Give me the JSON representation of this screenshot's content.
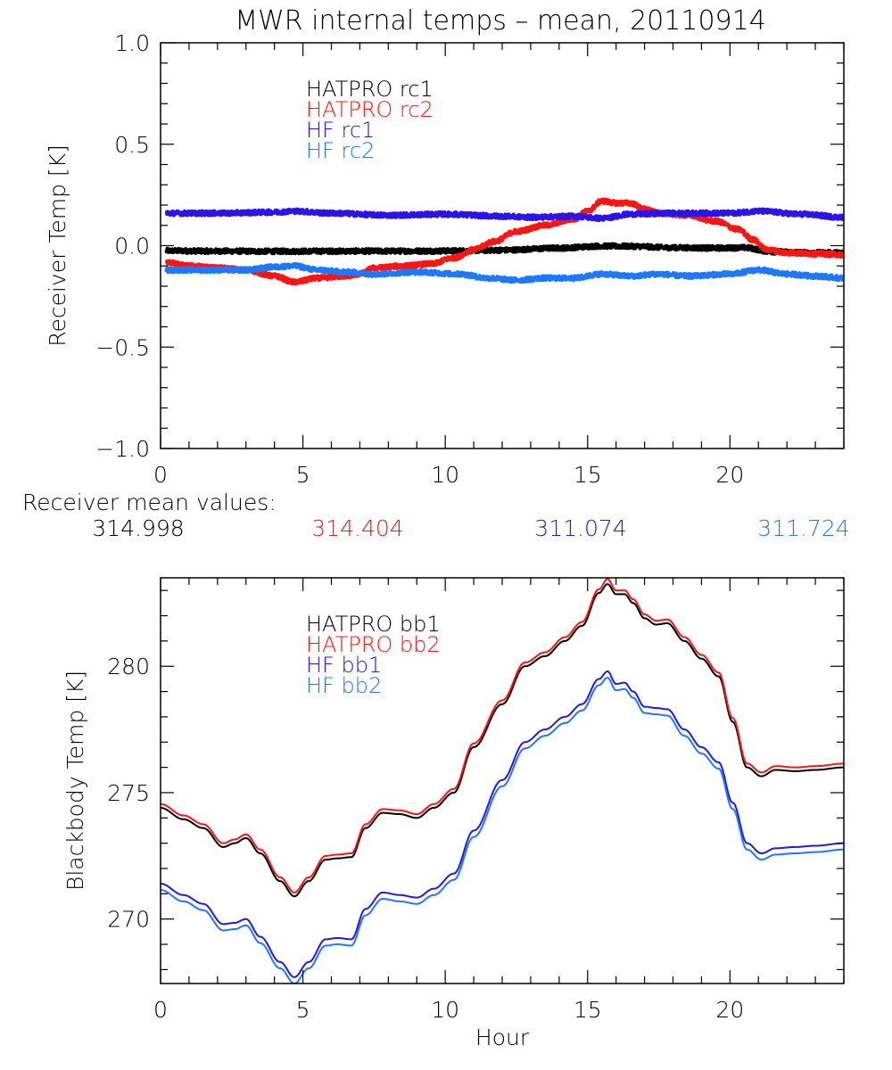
{
  "title": "MWR internal temps – mean, 20110914",
  "colors": {
    "black": "#000000",
    "red": "#ff1414",
    "blue": "#2d14e6",
    "lightblue": "#1e78ff"
  },
  "mean_values": {
    "label": "Receiver mean values:",
    "values": [
      {
        "text": "314.998",
        "color": "#000000"
      },
      {
        "text": "314.404",
        "color": "#ff1414"
      },
      {
        "text": "311.074",
        "color": "#2d14e6"
      },
      {
        "text": "311.724",
        "color": "#1e78ff"
      }
    ]
  },
  "chart_data": [
    {
      "type": "line",
      "title": "MWR internal temps – mean, 20110914",
      "xlabel": "",
      "ylabel": "Receiver Temp [K]",
      "xlim": [
        0,
        24
      ],
      "ylim": [
        -1.0,
        1.0
      ],
      "xticks": [
        0,
        5,
        10,
        15,
        20
      ],
      "xtick_labels": [
        "0",
        "5",
        "10",
        "15",
        "20"
      ],
      "yticks": [
        -1.0,
        -0.5,
        0.0,
        0.5,
        1.0
      ],
      "ytick_labels": [
        "−1.0",
        "−0.5",
        "0.0",
        "0.5",
        "1.0"
      ],
      "x_minor_step": 1,
      "y_minor_step": 0.1,
      "grid": false,
      "legend_position": "top-left-inside",
      "noisy": true,
      "series": [
        {
          "name": "HATPRO rc1",
          "color": "#000000",
          "x": [
            0.2,
            2,
            4,
            6,
            8,
            10,
            12,
            14,
            15.5,
            16.5,
            18,
            19.5,
            20.5,
            21.5,
            23,
            24
          ],
          "y": [
            -0.025,
            -0.027,
            -0.028,
            -0.027,
            -0.027,
            -0.026,
            -0.022,
            -0.012,
            -0.002,
            -0.003,
            -0.01,
            -0.012,
            -0.01,
            -0.03,
            -0.035,
            -0.035
          ]
        },
        {
          "name": "HATPRO rc2",
          "color": "#ff1414",
          "x": [
            0.2,
            1,
            2,
            3,
            4,
            4.7,
            5.5,
            6.5,
            7,
            7.5,
            8.5,
            9.5,
            10.3,
            11,
            11.7,
            12.5,
            13.5,
            14.5,
            15,
            15.5,
            16,
            16.5,
            17,
            17.5,
            18.5,
            19.5,
            20.3,
            20.8,
            21.3,
            22,
            23,
            24
          ],
          "y": [
            -0.08,
            -0.1,
            -0.11,
            -0.12,
            -0.15,
            -0.18,
            -0.16,
            -0.15,
            -0.14,
            -0.11,
            -0.1,
            -0.09,
            -0.06,
            -0.02,
            0.02,
            0.07,
            0.1,
            0.13,
            0.17,
            0.22,
            0.21,
            0.21,
            0.18,
            0.16,
            0.15,
            0.12,
            0.08,
            0.03,
            -0.02,
            -0.035,
            -0.04,
            -0.045
          ]
        },
        {
          "name": "HF rc1",
          "color": "#2d14e6",
          "x": [
            0.2,
            2,
            4,
            4.7,
            6,
            8,
            10,
            12,
            13,
            14.5,
            15.5,
            16.5,
            18,
            20,
            21,
            22.5,
            24
          ],
          "y": [
            0.16,
            0.16,
            0.165,
            0.17,
            0.16,
            0.15,
            0.155,
            0.145,
            0.14,
            0.145,
            0.135,
            0.155,
            0.16,
            0.16,
            0.17,
            0.155,
            0.14
          ]
        },
        {
          "name": "HF rc2",
          "color": "#1e78ff",
          "x": [
            0.2,
            1.5,
            3,
            4,
            4.7,
            5.5,
            6.5,
            7.5,
            9,
            10.5,
            11.5,
            12.5,
            13.5,
            14.5,
            15.5,
            16.5,
            17.5,
            18.5,
            20,
            21,
            22,
            23,
            24
          ],
          "y": [
            -0.12,
            -0.12,
            -0.12,
            -0.105,
            -0.1,
            -0.12,
            -0.13,
            -0.14,
            -0.13,
            -0.14,
            -0.16,
            -0.17,
            -0.16,
            -0.16,
            -0.14,
            -0.15,
            -0.14,
            -0.15,
            -0.14,
            -0.12,
            -0.14,
            -0.15,
            -0.16
          ]
        }
      ]
    },
    {
      "type": "line",
      "title": "",
      "xlabel": "Hour",
      "ylabel": "Blackbody Temp [K]",
      "xlim": [
        0,
        24
      ],
      "ylim": [
        267.45,
        283.5
      ],
      "xticks": [
        0,
        5,
        10,
        15,
        20
      ],
      "xtick_labels": [
        "0",
        "5",
        "10",
        "15",
        "20"
      ],
      "yticks": [
        270,
        275,
        280
      ],
      "ytick_labels": [
        "270",
        "275",
        "280"
      ],
      "x_minor_step": 1,
      "y_minor_step": 1,
      "grid": false,
      "legend_position": "top-left-inside",
      "noisy": false,
      "series": [
        {
          "name": "HATPRO bb1",
          "color": "#000000",
          "x": [
            0,
            0.8,
            1.5,
            2.2,
            2.6,
            3.0,
            3.5,
            4.2,
            4.7,
            5.2,
            5.8,
            6.2,
            6.7,
            7.2,
            7.8,
            8.4,
            9.0,
            9.6,
            10.3,
            11,
            12,
            12.8,
            13.5,
            14.2,
            14.8,
            15.4,
            15.7,
            16.0,
            16.3,
            16.6,
            17.0,
            17.4,
            17.8,
            18.4,
            19.0,
            19.6,
            20.1,
            20.6,
            21.1,
            21.6,
            22.3,
            23,
            24
          ],
          "y": [
            274.4,
            273.95,
            273.6,
            272.85,
            273.0,
            273.2,
            272.6,
            271.5,
            270.9,
            271.5,
            272.35,
            272.4,
            272.45,
            273.6,
            274.2,
            274.15,
            274.0,
            274.4,
            275.0,
            276.8,
            278.5,
            280.0,
            280.4,
            281.0,
            281.6,
            282.9,
            283.25,
            282.85,
            282.85,
            282.5,
            281.9,
            281.65,
            281.7,
            281.0,
            280.3,
            279.6,
            277.8,
            276.0,
            275.65,
            275.9,
            275.85,
            275.9,
            276.0
          ]
        },
        {
          "name": "HATPRO bb2",
          "color": "#ff1414",
          "x": [
            0,
            0.8,
            1.5,
            2.2,
            2.6,
            3.0,
            3.5,
            4.2,
            4.7,
            5.2,
            5.8,
            6.2,
            6.7,
            7.2,
            7.8,
            8.4,
            9.0,
            9.6,
            10.3,
            11,
            12,
            12.8,
            13.5,
            14.2,
            14.8,
            15.4,
            15.7,
            16.0,
            16.3,
            16.6,
            17.0,
            17.4,
            17.8,
            18.4,
            19.0,
            19.6,
            20.1,
            20.6,
            21.1,
            21.6,
            22.3,
            23,
            24
          ],
          "y": [
            274.55,
            274.1,
            273.75,
            273.0,
            273.15,
            273.35,
            272.75,
            271.65,
            271.05,
            271.65,
            272.5,
            272.55,
            272.6,
            273.75,
            274.35,
            274.3,
            274.15,
            274.55,
            275.15,
            276.95,
            278.65,
            280.15,
            280.55,
            281.15,
            281.75,
            283.05,
            283.45,
            283.0,
            283.0,
            282.65,
            282.05,
            281.8,
            281.85,
            281.15,
            280.45,
            279.75,
            277.95,
            276.15,
            275.8,
            276.05,
            276.0,
            276.05,
            276.15
          ]
        },
        {
          "name": "HF bb1",
          "color": "#2d14e6",
          "x": [
            0,
            0.8,
            1.5,
            2.2,
            2.6,
            3.0,
            3.5,
            4.2,
            4.7,
            5.2,
            5.8,
            6.2,
            6.7,
            7.2,
            7.8,
            8.4,
            9.0,
            9.6,
            10.3,
            11,
            12,
            12.8,
            13.5,
            14.2,
            14.8,
            15.4,
            15.7,
            16.0,
            16.3,
            16.6,
            17.0,
            17.4,
            17.8,
            18.4,
            19.0,
            19.6,
            20.1,
            20.6,
            21.1,
            21.6,
            22.3,
            23,
            24
          ],
          "y": [
            271.4,
            270.95,
            270.6,
            269.8,
            269.85,
            270.0,
            269.3,
            268.3,
            267.7,
            268.3,
            269.2,
            269.25,
            269.2,
            270.4,
            271.05,
            270.95,
            270.85,
            271.2,
            271.8,
            273.5,
            275.5,
            277.0,
            277.5,
            278.0,
            278.5,
            279.5,
            279.8,
            279.3,
            279.35,
            279.0,
            278.4,
            278.35,
            278.3,
            277.5,
            276.8,
            276.2,
            274.6,
            273.0,
            272.6,
            272.8,
            272.85,
            272.9,
            273.0
          ]
        },
        {
          "name": "HF bb2",
          "color": "#1e78ff",
          "x": [
            0,
            0.8,
            1.5,
            2.2,
            2.6,
            3.0,
            3.5,
            4.2,
            4.7,
            5.2,
            5.8,
            6.2,
            6.7,
            7.2,
            7.8,
            8.4,
            9.0,
            9.6,
            10.3,
            11,
            12,
            12.8,
            13.5,
            14.2,
            14.8,
            15.4,
            15.7,
            16.0,
            16.3,
            16.6,
            17.0,
            17.4,
            17.8,
            18.4,
            19.0,
            19.6,
            20.1,
            20.6,
            21.1,
            21.6,
            22.3,
            23,
            24
          ],
          "y": [
            271.15,
            270.7,
            270.35,
            269.55,
            269.6,
            269.75,
            269.05,
            268.05,
            267.45,
            268.05,
            268.95,
            269.0,
            268.95,
            270.15,
            270.8,
            270.7,
            270.6,
            270.95,
            271.55,
            273.25,
            275.25,
            276.75,
            277.25,
            277.75,
            278.25,
            279.25,
            279.55,
            279.05,
            279.1,
            278.75,
            278.15,
            278.1,
            278.05,
            277.25,
            276.55,
            275.95,
            274.35,
            272.75,
            272.35,
            272.55,
            272.6,
            272.65,
            272.75
          ]
        }
      ]
    }
  ]
}
